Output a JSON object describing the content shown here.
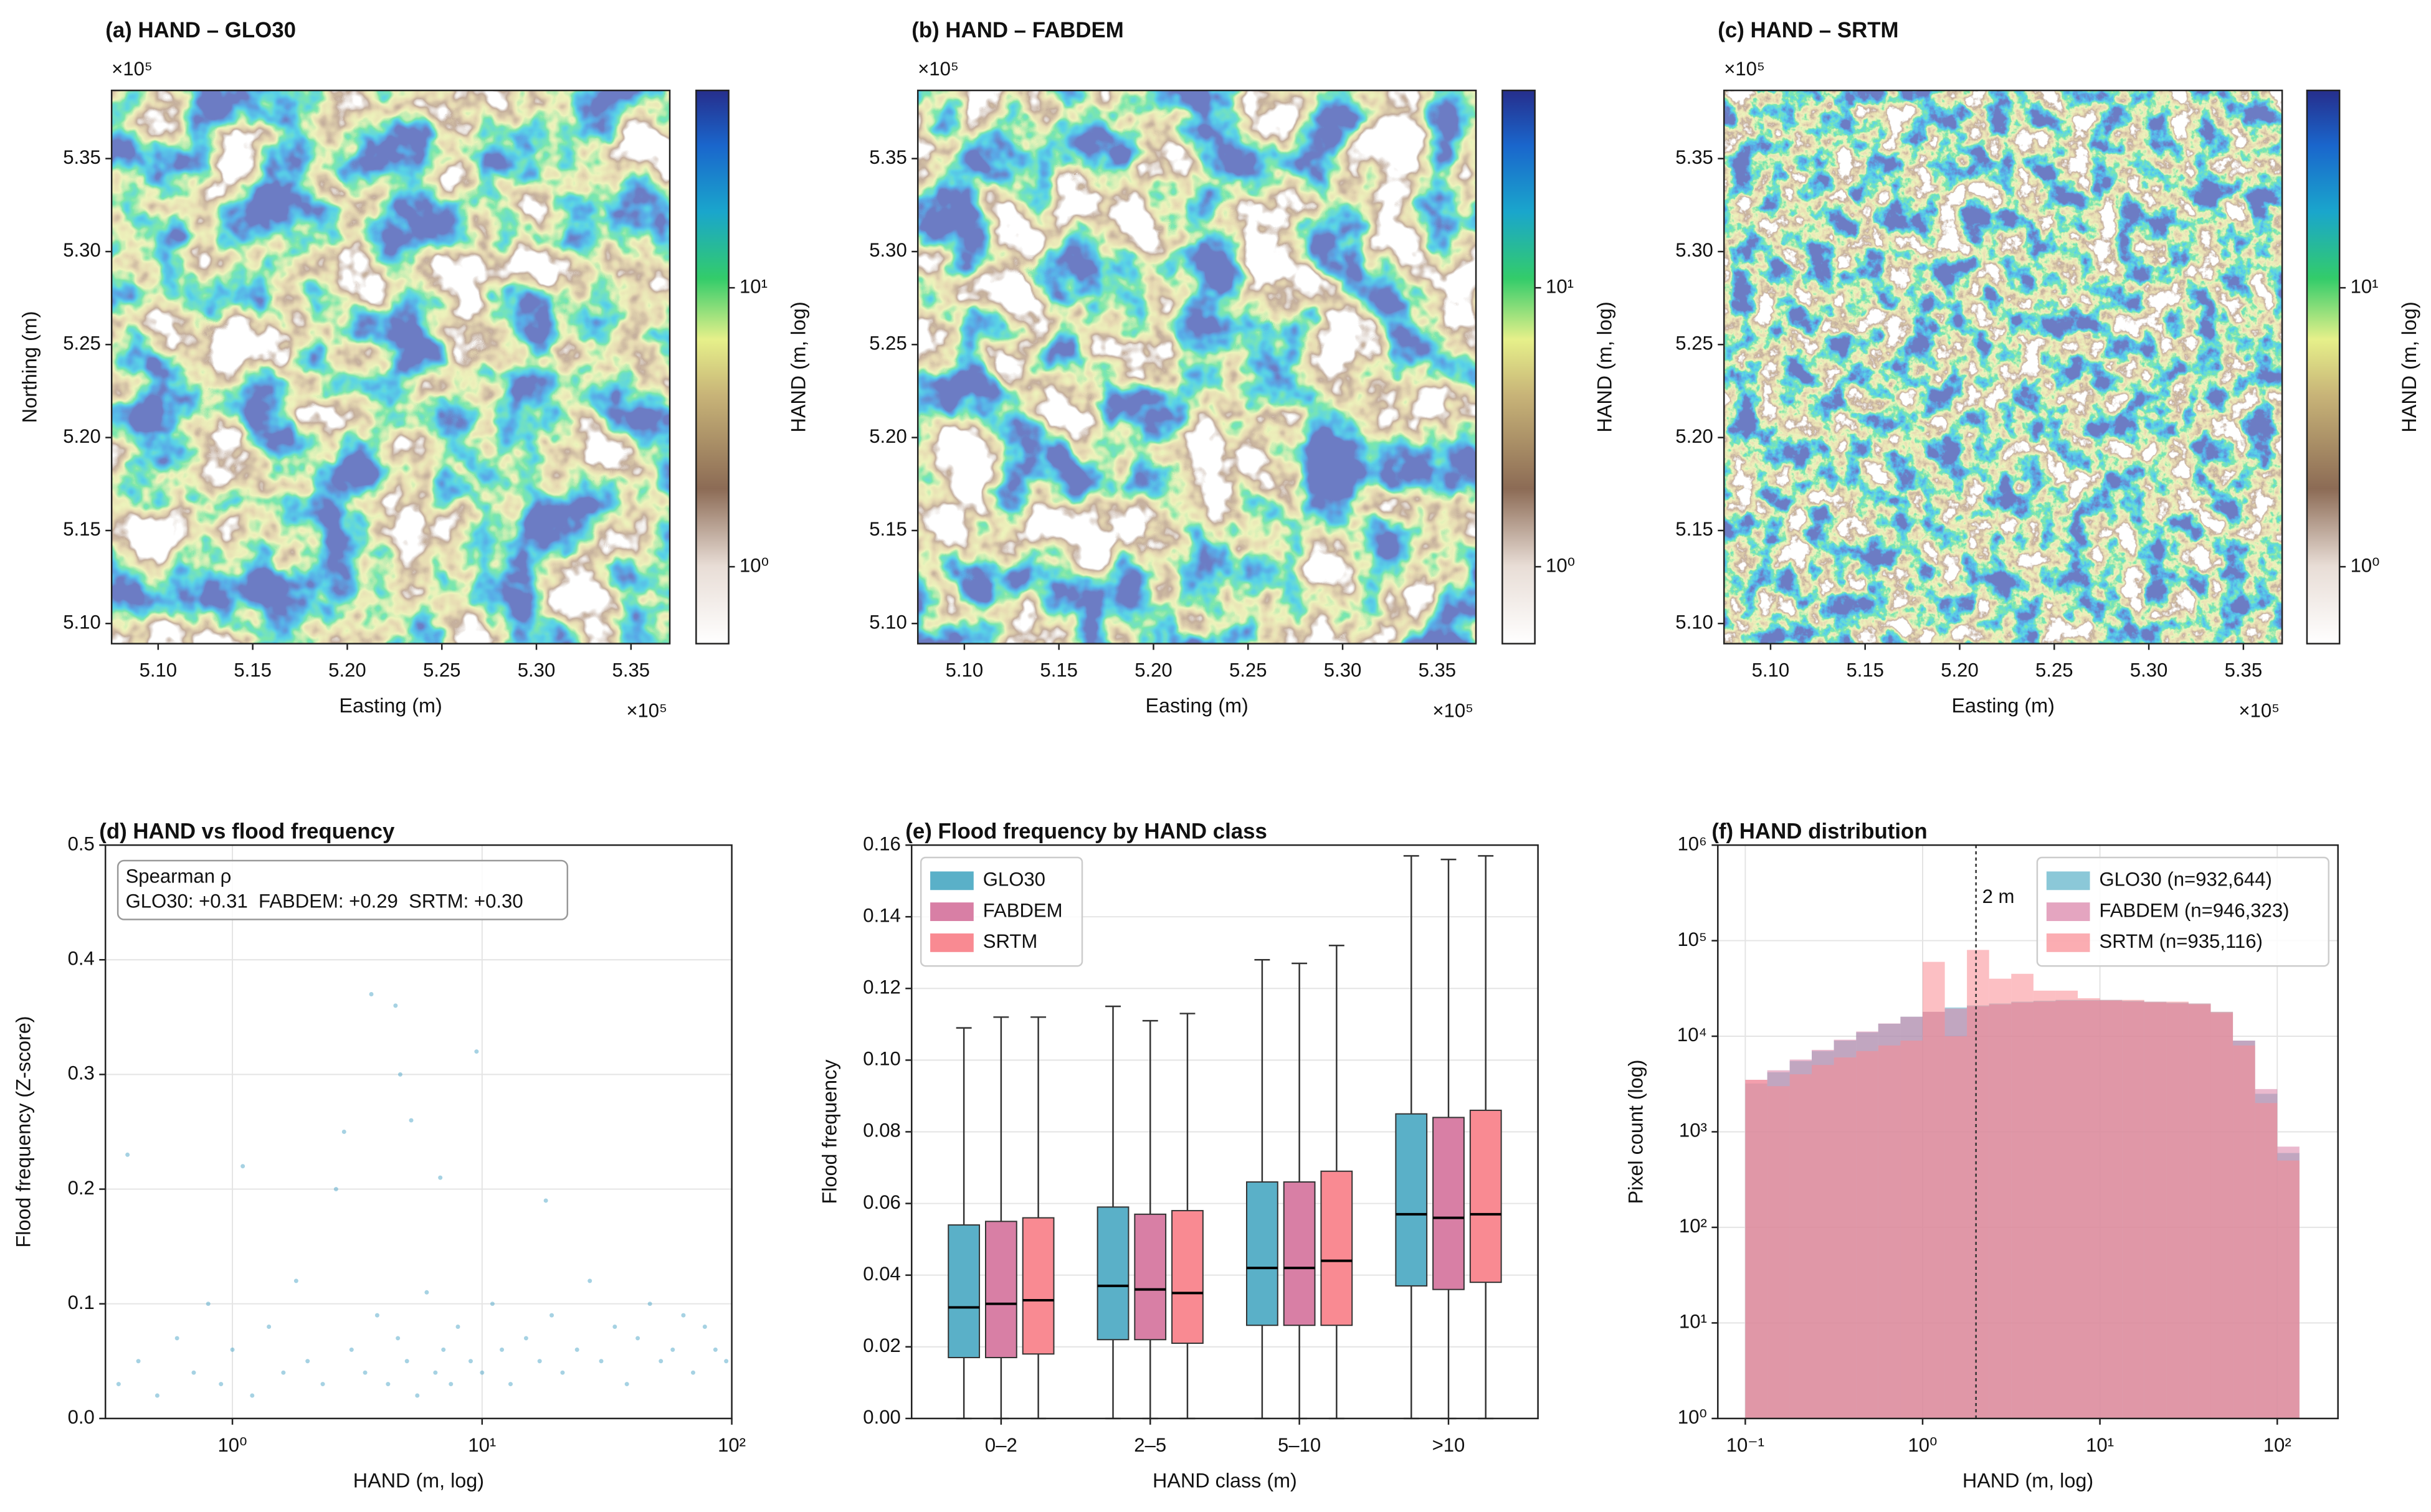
{
  "chart_data": [
    {
      "type": "map",
      "title": "(a) HAND – GLO30",
      "offset_label": "×10⁵",
      "xlabel": "Easting (m)",
      "ylabel": "Northing (m)",
      "clabel": "HAND (m, log)",
      "xlim": [
        507540,
        537050
      ],
      "ylim": [
        508917,
        538667
      ],
      "clim": [
        0.53,
        51
      ],
      "clog": true,
      "xticks": [
        {
          "value": 510000,
          "label": "5.10"
        },
        {
          "value": 515000,
          "label": "5.15"
        },
        {
          "value": 520000,
          "label": "5.20"
        },
        {
          "value": 525000,
          "label": "5.25"
        },
        {
          "value": 530000,
          "label": "5.30"
        },
        {
          "value": 535000,
          "label": "5.35"
        }
      ],
      "yticks": [
        {
          "value": 510000,
          "label": "5.10"
        },
        {
          "value": 515000,
          "label": "5.15"
        },
        {
          "value": 520000,
          "label": "5.20"
        },
        {
          "value": 525000,
          "label": "5.25"
        },
        {
          "value": 530000,
          "label": "5.30"
        },
        {
          "value": 535000,
          "label": "5.35"
        }
      ],
      "cticks": [
        {
          "value": 1,
          "label": "10⁰"
        },
        {
          "value": 10,
          "label": "10¹"
        }
      ]
    },
    {
      "type": "map",
      "title": "(b) HAND – FABDEM",
      "offset_label": "×10⁵",
      "xlabel": "Easting (m)",
      "clabel": "HAND (m, log)",
      "xlim": [
        507540,
        537050
      ],
      "ylim": [
        508917,
        538667
      ],
      "clim": [
        0.53,
        51
      ],
      "clog": true,
      "xticks": [
        {
          "value": 510000,
          "label": "5.10"
        },
        {
          "value": 515000,
          "label": "5.15"
        },
        {
          "value": 520000,
          "label": "5.20"
        },
        {
          "value": 525000,
          "label": "5.25"
        },
        {
          "value": 530000,
          "label": "5.30"
        },
        {
          "value": 535000,
          "label": "5.35"
        }
      ],
      "yticks": [
        {
          "value": 510000,
          "label": "5.10"
        },
        {
          "value": 515000,
          "label": "5.15"
        },
        {
          "value": 520000,
          "label": "5.20"
        },
        {
          "value": 525000,
          "label": "5.25"
        },
        {
          "value": 530000,
          "label": "5.30"
        },
        {
          "value": 535000,
          "label": "5.35"
        }
      ],
      "cticks": [
        {
          "value": 1,
          "label": "10⁰"
        },
        {
          "value": 10,
          "label": "10¹"
        }
      ]
    },
    {
      "type": "map",
      "title": "(c) HAND – SRTM",
      "offset_label": "×10⁵",
      "xlabel": "Easting (m)",
      "clabel": "HAND (m, log)",
      "xlim": [
        507540,
        537050
      ],
      "ylim": [
        508917,
        538667
      ],
      "clim": [
        0.53,
        51
      ],
      "clog": true,
      "xticks": [
        {
          "value": 510000,
          "label": "5.10"
        },
        {
          "value": 515000,
          "label": "5.15"
        },
        {
          "value": 520000,
          "label": "5.20"
        },
        {
          "value": 525000,
          "label": "5.25"
        },
        {
          "value": 530000,
          "label": "5.30"
        },
        {
          "value": 535000,
          "label": "5.35"
        }
      ],
      "yticks": [
        {
          "value": 510000,
          "label": "5.10"
        },
        {
          "value": 515000,
          "label": "5.15"
        },
        {
          "value": 520000,
          "label": "5.20"
        },
        {
          "value": 525000,
          "label": "5.25"
        },
        {
          "value": 530000,
          "label": "5.30"
        },
        {
          "value": 535000,
          "label": "5.35"
        }
      ],
      "cticks": [
        {
          "value": 1,
          "label": "10⁰"
        },
        {
          "value": 10,
          "label": "10¹"
        }
      ]
    },
    {
      "type": "scatter",
      "title": "(d) HAND vs flood frequency",
      "xlabel": "HAND (m, log)",
      "ylabel": "Flood frequency (Z-score)",
      "legend_title": "Spearman ρ",
      "annotation": "GLO30: +0.31  FABDEM: +0.29  SRTM: +0.30",
      "xlog": true,
      "grid": true,
      "color": "#3a9bc0",
      "xlim": [
        0.31,
        100
      ],
      "ylim": [
        0,
        0.5
      ],
      "xticks": [
        {
          "value": 1,
          "label": "10⁰"
        },
        {
          "value": 10,
          "label": "10¹"
        },
        {
          "value": 100,
          "label": "10²"
        }
      ],
      "yticks": [
        {
          "value": 0,
          "label": "0.0"
        },
        0.1,
        0.2,
        0.3,
        0.4,
        0.5
      ],
      "x": [
        0.35,
        0.42,
        0.5,
        0.6,
        0.7,
        0.8,
        0.9,
        1.0,
        1.2,
        1.4,
        1.6,
        1.8,
        2.0,
        2.3,
        2.6,
        3.0,
        3.4,
        3.8,
        4.2,
        4.6,
        5.0,
        5.5,
        6.0,
        6.5,
        7.0,
        7.5,
        8.0,
        9.0,
        10,
        11,
        12,
        13,
        15,
        17,
        19,
        21,
        24,
        27,
        30,
        34,
        38,
        42,
        47,
        52,
        58,
        64,
        70,
        78,
        86,
        95,
        3.6,
        4.5,
        4.7,
        9.5,
        2.8,
        0.38,
        1.1,
        5.2,
        6.8,
        18
      ],
      "y": [
        0.03,
        0.05,
        0.02,
        0.07,
        0.04,
        0.1,
        0.03,
        0.06,
        0.02,
        0.08,
        0.04,
        0.12,
        0.05,
        0.03,
        0.2,
        0.06,
        0.04,
        0.09,
        0.03,
        0.07,
        0.05,
        0.02,
        0.11,
        0.04,
        0.06,
        0.03,
        0.08,
        0.05,
        0.04,
        0.1,
        0.06,
        0.03,
        0.07,
        0.05,
        0.09,
        0.04,
        0.06,
        0.12,
        0.05,
        0.08,
        0.03,
        0.07,
        0.1,
        0.05,
        0.06,
        0.09,
        0.04,
        0.08,
        0.06,
        0.05,
        0.37,
        0.36,
        0.3,
        0.32,
        0.25,
        0.23,
        0.22,
        0.26,
        0.21,
        0.19
      ]
    },
    {
      "type": "box",
      "title": "(e) Flood frequency by HAND class",
      "xlabel": "HAND class (m)",
      "ylabel": "Flood frequency",
      "grid": true,
      "legend": "upper left",
      "categories": [
        "0–2",
        "2–5",
        "5–10",
        ">10"
      ],
      "ylim": [
        0,
        0.16
      ],
      "yticks": [
        {
          "value": 0,
          "label": "0.00"
        },
        {
          "value": 0.02,
          "label": "0.02"
        },
        {
          "value": 0.04,
          "label": "0.04"
        },
        {
          "value": 0.06,
          "label": "0.06"
        },
        {
          "value": 0.08,
          "label": "0.08"
        },
        {
          "value": 0.1,
          "label": "0.10"
        },
        {
          "value": 0.12,
          "label": "0.12"
        },
        {
          "value": 0.14,
          "label": "0.14"
        },
        {
          "value": 0.16,
          "label": "0.16"
        }
      ],
      "series": [
        {
          "name": "GLO30",
          "color": "#5ab0c8",
          "whislo": [
            0,
            0,
            0,
            0
          ],
          "q1": [
            0.017,
            0.022,
            0.026,
            0.037
          ],
          "med": [
            0.031,
            0.037,
            0.042,
            0.057
          ],
          "q3": [
            0.054,
            0.059,
            0.066,
            0.085
          ],
          "whishi": [
            0.109,
            0.115,
            0.128,
            0.157
          ]
        },
        {
          "name": "FABDEM",
          "color": "#d87fa5",
          "whislo": [
            0,
            0,
            0,
            0
          ],
          "q1": [
            0.017,
            0.022,
            0.026,
            0.036
          ],
          "med": [
            0.032,
            0.036,
            0.042,
            0.056
          ],
          "q3": [
            0.055,
            0.057,
            0.066,
            0.084
          ],
          "whishi": [
            0.112,
            0.111,
            0.127,
            0.156
          ]
        },
        {
          "name": "SRTM",
          "color": "#f98a92",
          "whislo": [
            0,
            0,
            0,
            0
          ],
          "q1": [
            0.018,
            0.021,
            0.026,
            0.038
          ],
          "med": [
            0.033,
            0.035,
            0.044,
            0.057
          ],
          "q3": [
            0.056,
            0.058,
            0.069,
            0.086
          ],
          "whishi": [
            0.112,
            0.113,
            0.132,
            0.157
          ]
        }
      ]
    },
    {
      "type": "histogram",
      "title": "(f) HAND distribution",
      "xlabel": "HAND (m, log)",
      "ylabel": "Pixel count (log)",
      "xlog": true,
      "ylog": true,
      "grid": true,
      "legend": "upper right",
      "xlim": [
        0.07,
        220
      ],
      "ylim": [
        1,
        1000000
      ],
      "xticks": [
        {
          "value": 0.1,
          "label": "10⁻¹"
        },
        {
          "value": 1,
          "label": "10⁰"
        },
        {
          "value": 10,
          "label": "10¹"
        },
        {
          "value": 100,
          "label": "10²"
        }
      ],
      "yticks": [
        {
          "value": 1,
          "label": "10⁰"
        },
        {
          "value": 10,
          "label": "10¹"
        },
        {
          "value": 100,
          "label": "10²"
        },
        {
          "value": 1000,
          "label": "10³"
        },
        {
          "value": 10000,
          "label": "10⁴"
        },
        {
          "value": 100000,
          "label": "10⁵"
        },
        {
          "value": 1000000,
          "label": "10⁶"
        }
      ],
      "vline": 2,
      "vline_label": "2 m",
      "bins": [
        0.1,
        0.133,
        0.178,
        0.237,
        0.316,
        0.422,
        0.562,
        0.75,
        1,
        1.334,
        1.778,
        2.371,
        3.162,
        4.217,
        5.623,
        7.499,
        10,
        13.34,
        17.78,
        23.71,
        31.62,
        42.17,
        56.23,
        74.99,
        100,
        133.4
      ],
      "series": [
        {
          "name": "GLO30 (n=932,644)",
          "color": "#5ab0c8",
          "values": [
            3200,
            4200,
            5500,
            7000,
            9000,
            11000,
            13500,
            16000,
            18000,
            20000,
            21000,
            22000,
            23000,
            23500,
            24000,
            24000,
            24000,
            23500,
            23000,
            22500,
            22000,
            18000,
            9000,
            2500,
            600
          ]
        },
        {
          "name": "FABDEM (n=946,323)",
          "color": "#d87fa5",
          "values": [
            3500,
            4400,
            5700,
            7200,
            9200,
            11200,
            13600,
            16000,
            18000,
            19500,
            20500,
            21500,
            22500,
            23000,
            23500,
            23500,
            23500,
            23000,
            22500,
            22000,
            21500,
            17500,
            9000,
            2800,
            700
          ]
        },
        {
          "name": "SRTM (n=935,116)",
          "color": "#f98a92",
          "values": [
            3500,
            3000,
            4000,
            5000,
            6000,
            7000,
            8000,
            9000,
            60000,
            10000,
            80000,
            40000,
            45000,
            30000,
            30000,
            25000,
            24000,
            24000,
            23000,
            23000,
            22000,
            18000,
            8000,
            2000,
            500
          ]
        }
      ]
    }
  ]
}
